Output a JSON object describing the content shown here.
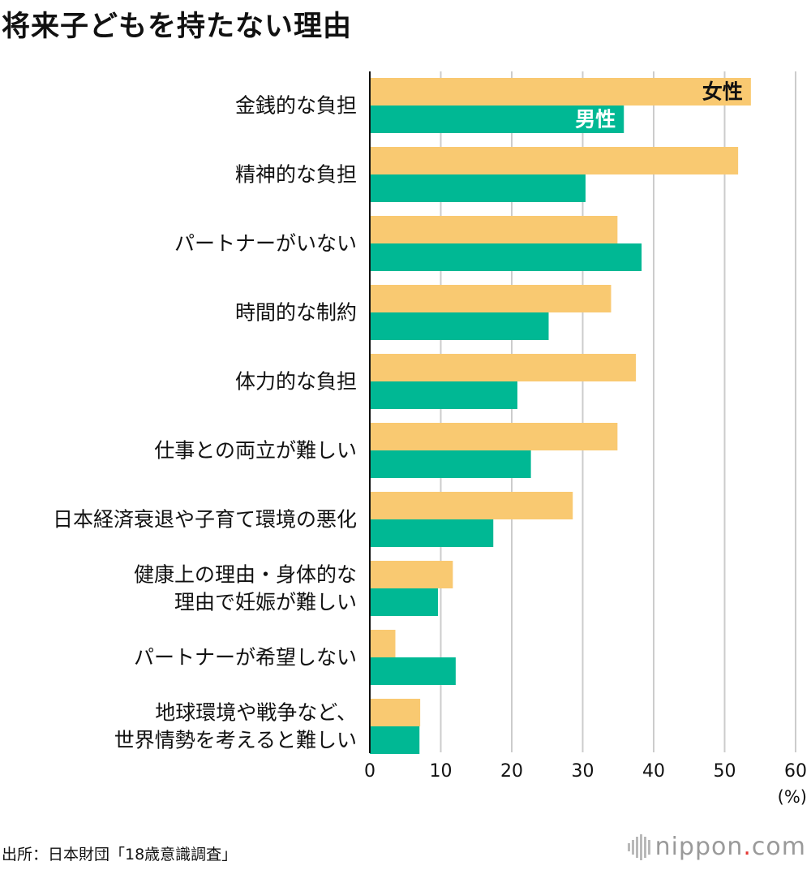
{
  "page_title": "将来子どもを持たない理由",
  "source": "出所：日本財団「18歳意識調査」",
  "brand": {
    "name": "nippon",
    "dot": ".",
    "tld": "com"
  },
  "colors": {
    "female": "#F9C971",
    "male": "#00B894",
    "grid": "#CCCCCC",
    "axis": "#111111"
  },
  "chart_data": {
    "type": "bar",
    "orientation": "horizontal",
    "title": "将来子どもを持たない理由",
    "categories": [
      [
        "金銭的な負担"
      ],
      [
        "精神的な負担"
      ],
      [
        "パートナーがいない"
      ],
      [
        "時間的な制約"
      ],
      [
        "体力的な負担"
      ],
      [
        "仕事との両立が難しい"
      ],
      [
        "日本経済衰退や子育て環境の悪化"
      ],
      [
        "健康上の理由・身体的な",
        "理由で妊娠が難しい"
      ],
      [
        "パートナーが希望しない"
      ],
      [
        "地球環境や戦争など、",
        "世界情勢を考えると難しい"
      ]
    ],
    "series": [
      {
        "name": "女性",
        "values": [
          53.7,
          51.9,
          34.9,
          34.0,
          37.5,
          34.9,
          28.6,
          11.7,
          3.6,
          7.1
        ]
      },
      {
        "name": "男性",
        "values": [
          35.8,
          30.4,
          38.3,
          25.2,
          20.8,
          22.7,
          17.4,
          9.6,
          12.1,
          7.0
        ]
      }
    ],
    "x_ticks": [
      0,
      10,
      20,
      30,
      40,
      50,
      60
    ],
    "x_unit": "(%)",
    "xlim": [
      0,
      60
    ],
    "grid": true,
    "legend": "inside first bars"
  }
}
